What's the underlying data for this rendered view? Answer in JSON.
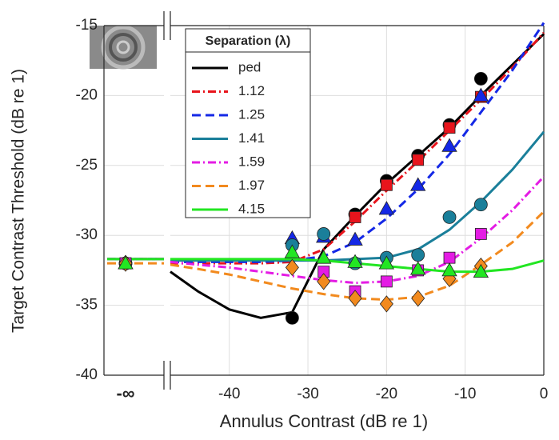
{
  "chart_data": {
    "type": "line",
    "xlabel": "Annulus Contrast (dB re 1)",
    "ylabel": "Target Contrast Threshold (dB re 1)",
    "legend_title": "Separation (λ)",
    "legend_position": "upper left",
    "grid": true,
    "break_label": "-∞",
    "x": [
      -32,
      -28,
      -24,
      -20,
      -16,
      -12,
      -8
    ],
    "fit_x": [
      -47.5,
      -44,
      -40,
      -36,
      -32,
      -28,
      -24,
      -20,
      -16,
      -12,
      -8,
      -4,
      0
    ],
    "xlim": [
      -47.5,
      0
    ],
    "xticks": [
      -40,
      -30,
      -20,
      -10,
      0
    ],
    "ylim": [
      -40,
      -15
    ],
    "yticks": [
      -15,
      -20,
      -25,
      -30,
      -35,
      -40
    ],
    "series": [
      {
        "name": "ped",
        "color": "#000000",
        "marker": "circle",
        "dash": "solid",
        "break_value": -32.0,
        "break_fit": -31.7,
        "values": [
          -35.9,
          null,
          -28.5,
          -26.1,
          -24.3,
          -22.1,
          -18.8
        ],
        "fit_values": [
          -32.6,
          -34.0,
          -35.3,
          -35.9,
          -35.5,
          -31.0,
          -28.6,
          -26.3,
          -24.3,
          -22.3,
          -20.0,
          -17.8,
          -15.6
        ]
      },
      {
        "name": "1.12",
        "color": "#e8141c",
        "marker": "square",
        "dash": "dashdot",
        "break_value": -32.0,
        "break_fit": -31.7,
        "values": [
          null,
          null,
          -28.7,
          -26.4,
          -24.6,
          -22.3,
          -20.1
        ],
        "fit_values": [
          -32.0,
          -32.0,
          -32.0,
          -32.0,
          -31.9,
          -31.0,
          -29.0,
          -26.8,
          -24.7,
          -22.5,
          -20.3,
          -18.0,
          -15.5
        ]
      },
      {
        "name": "1.25",
        "color": "#1428e6",
        "marker": "triangle",
        "dash": "dashed",
        "break_value": -32.0,
        "break_fit": -31.7,
        "values": [
          -30.2,
          -30.1,
          -30.3,
          -28.1,
          -26.4,
          -23.6,
          -20.0
        ],
        "fit_values": [
          -31.9,
          -31.9,
          -31.9,
          -31.9,
          -31.8,
          -31.5,
          -30.5,
          -28.8,
          -26.7,
          -24.2,
          -21.2,
          -18.2,
          -14.8
        ]
      },
      {
        "name": "1.41",
        "color": "#1a7f9a",
        "marker": "circle",
        "dash": "solid",
        "break_value": -32.0,
        "break_fit": -31.7,
        "values": [
          -30.7,
          -29.9,
          -32.0,
          -31.6,
          -31.4,
          -28.7,
          -27.8
        ],
        "fit_values": [
          -31.8,
          -31.8,
          -31.8,
          -31.8,
          -31.8,
          -31.8,
          -31.7,
          -31.6,
          -31.0,
          -29.6,
          -27.6,
          -25.3,
          -22.6
        ]
      },
      {
        "name": "1.59",
        "color": "#e41ce4",
        "marker": "square",
        "dash": "dashdot",
        "break_value": -32.0,
        "break_fit": -31.7,
        "values": [
          null,
          -32.6,
          -34.0,
          -33.3,
          -32.5,
          -31.6,
          -29.9
        ],
        "fit_values": [
          -31.9,
          -32.1,
          -32.3,
          -32.6,
          -32.9,
          -33.2,
          -33.4,
          -33.3,
          -32.9,
          -31.9,
          -30.2,
          -28.2,
          -25.8
        ]
      },
      {
        "name": "1.97",
        "color": "#f28a1e",
        "marker": "diamond",
        "dash": "dashed",
        "break_value": -32.0,
        "break_fit": -32.0,
        "values": [
          -32.3,
          -33.3,
          -34.5,
          -34.9,
          -34.5,
          -33.1,
          -32.2
        ],
        "fit_values": [
          -32.1,
          -32.4,
          -32.8,
          -33.3,
          -33.8,
          -34.2,
          -34.5,
          -34.6,
          -34.4,
          -33.6,
          -32.1,
          -30.5,
          -28.3
        ]
      },
      {
        "name": "4.15",
        "color": "#22e622",
        "marker": "triangle",
        "dash": "solid",
        "break_value": -32.0,
        "break_fit": -31.7,
        "values": [
          -31.2,
          -31.6,
          -31.9,
          -32.0,
          -32.4,
          -32.5,
          -32.6
        ],
        "fit_values": [
          -31.7,
          -31.7,
          -31.7,
          -31.7,
          -31.7,
          -31.8,
          -32.0,
          -32.2,
          -32.4,
          -32.6,
          -32.6,
          -32.4,
          -31.8
        ]
      }
    ]
  }
}
